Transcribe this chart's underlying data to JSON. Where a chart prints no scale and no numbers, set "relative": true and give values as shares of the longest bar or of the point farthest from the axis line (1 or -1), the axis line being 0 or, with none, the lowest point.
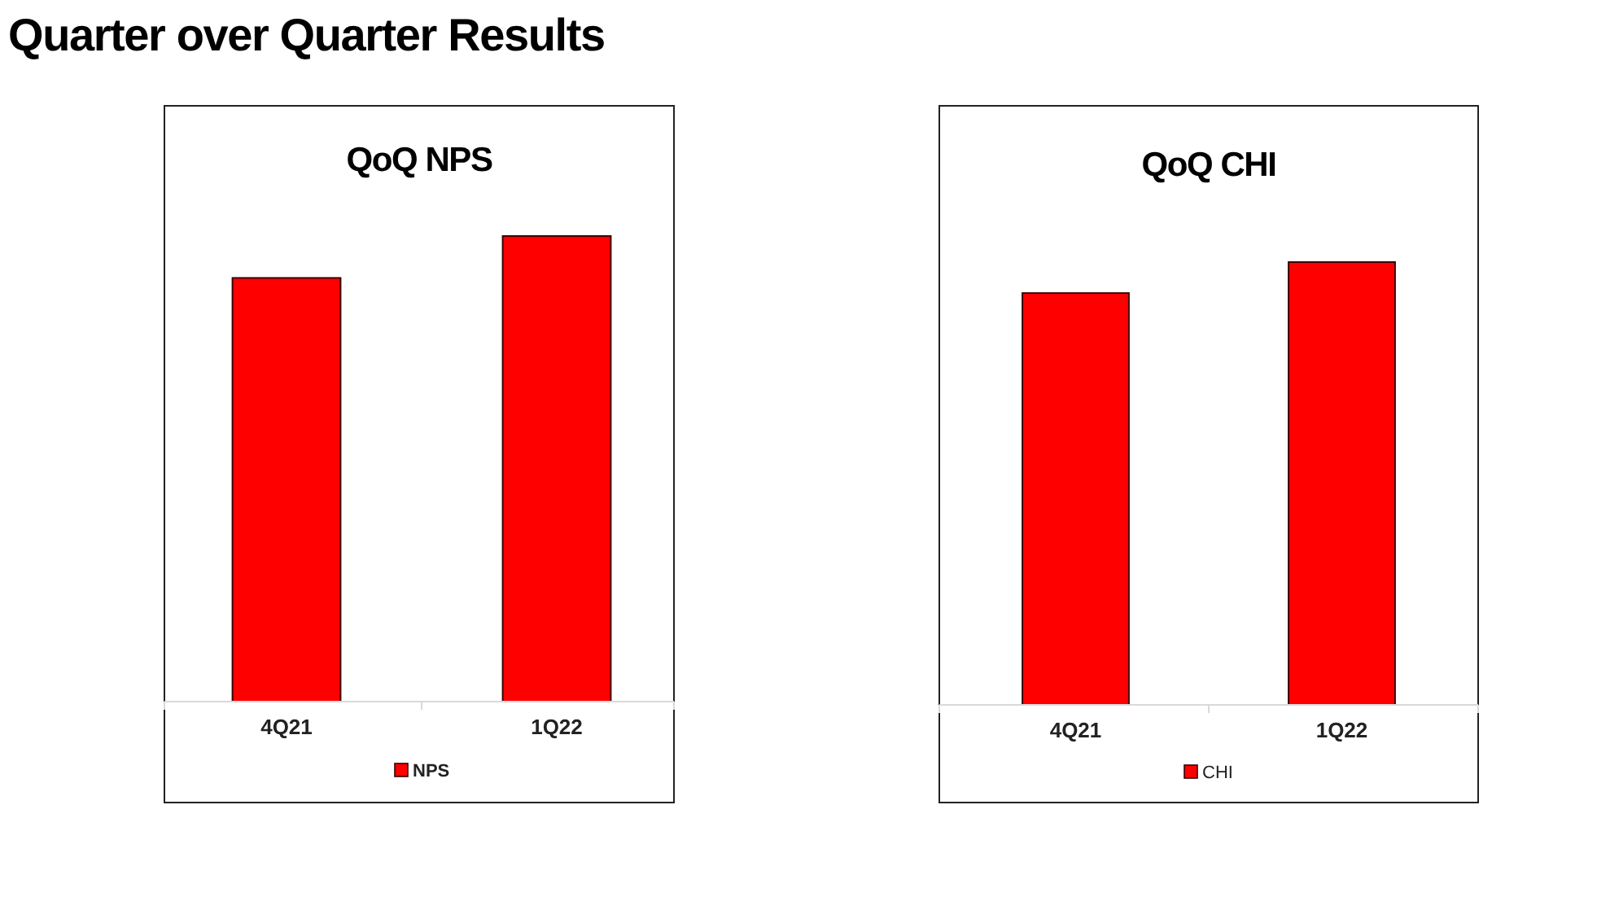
{
  "chart_data": [
    {
      "type": "other",
      "title": "Quarter over Quarter Results"
    },
    {
      "type": "bar",
      "title": "QoQ NPS",
      "categories": [
        "4Q21",
        "1Q22"
      ],
      "series": [
        {
          "name": "NPS",
          "color": "#ff0000",
          "values": [
            0.91,
            1
          ]
        }
      ],
      "relative": true,
      "legend": "bottom"
    },
    {
      "type": "bar",
      "title": "QoQ CHI",
      "categories": [
        "4Q21",
        "1Q22"
      ],
      "series": [
        {
          "name": "CHI",
          "color": "#ff0000",
          "values": [
            0.93,
            1
          ]
        }
      ],
      "relative": true,
      "legend": "bottom"
    }
  ]
}
